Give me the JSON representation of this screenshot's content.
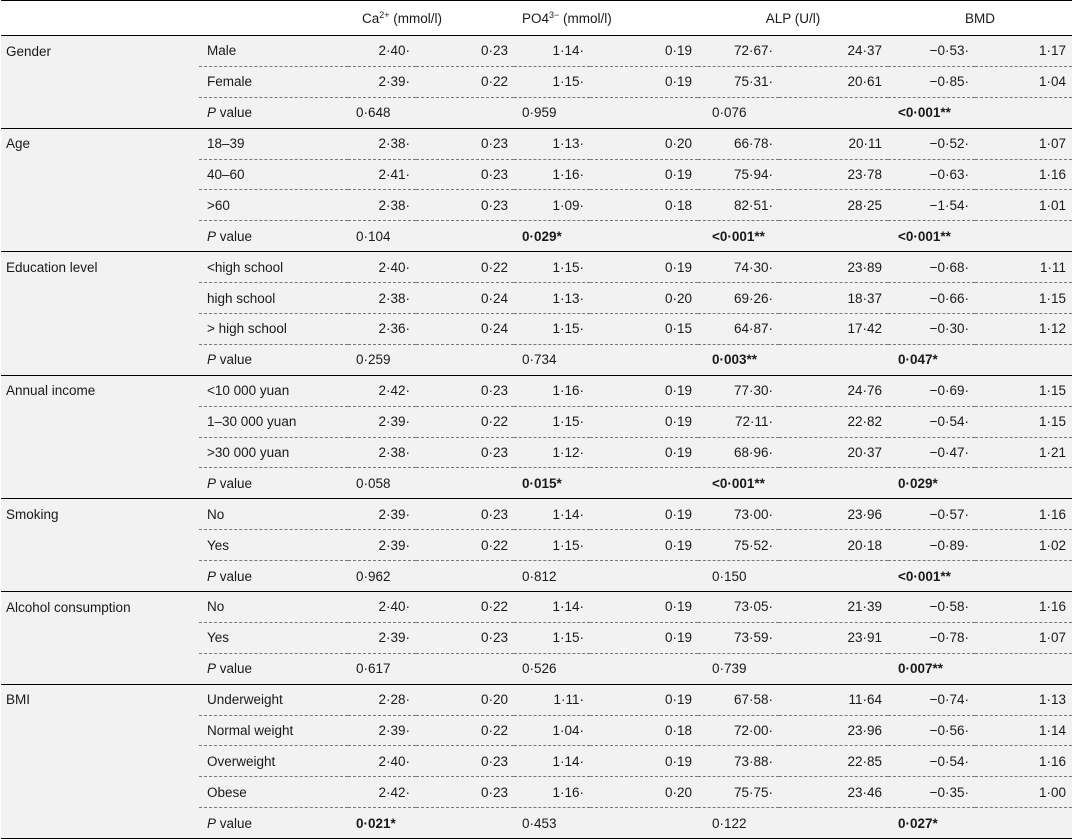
{
  "headers": {
    "ca_base": "Ca",
    "ca_sup": "2+",
    "ca_unit": " (mmol/l)",
    "po_base": "PO4",
    "po_sup": "3−",
    "po_unit": " (mmol/l)",
    "alp": "ALP (U/l)",
    "bmd": "BMD"
  },
  "groups": [
    {
      "name": "Gender",
      "rows": [
        {
          "label": "Male",
          "ca": [
            "2·40·",
            "0·23"
          ],
          "po": [
            "1·14·",
            "0·19"
          ],
          "alp": [
            "72·67·",
            "24·37"
          ],
          "bmd": [
            "−0·53·",
            "1·17"
          ]
        },
        {
          "label": "Female",
          "ca": [
            "2·39·",
            "0·22"
          ],
          "po": [
            "1·15·",
            "0·19"
          ],
          "alp": [
            "75·31·",
            "20·61"
          ],
          "bmd": [
            "−0·85·",
            "1·04"
          ]
        }
      ],
      "p": {
        "label_italic": "P",
        "label_rest": " value",
        "ca": "0·648",
        "ca_bold": false,
        "po": "0·959",
        "po_bold": false,
        "alp": "0·076",
        "alp_bold": false,
        "bmd": "<0·001**",
        "bmd_bold": true
      }
    },
    {
      "name": "Age",
      "rows": [
        {
          "label": "18–39",
          "ca": [
            "2·38·",
            "0·23"
          ],
          "po": [
            "1·13·",
            "0·20"
          ],
          "alp": [
            "66·78·",
            "20·11"
          ],
          "bmd": [
            "−0·52·",
            "1·07"
          ]
        },
        {
          "label": "40–60",
          "ca": [
            "2·41·",
            "0·23"
          ],
          "po": [
            "1·16·",
            "0·19"
          ],
          "alp": [
            "75·94·",
            "23·78"
          ],
          "bmd": [
            "−0·63·",
            "1·16"
          ]
        },
        {
          "label": ">60",
          "ca": [
            "2·38·",
            "0·23"
          ],
          "po": [
            "1·09·",
            "0·18"
          ],
          "alp": [
            "82·51·",
            "28·25"
          ],
          "bmd": [
            "−1·54·",
            "1·01"
          ]
        }
      ],
      "p": {
        "label_italic": "P",
        "label_rest": " value",
        "ca": "0·104",
        "ca_bold": false,
        "po": "0·029*",
        "po_bold": true,
        "alp": "<0·001**",
        "alp_bold": true,
        "bmd": "<0·001**",
        "bmd_bold": true
      }
    },
    {
      "name": "Education level",
      "rows": [
        {
          "label": "<high school",
          "ca": [
            "2·40·",
            "0·22"
          ],
          "po": [
            "1·15·",
            "0·19"
          ],
          "alp": [
            "74·30·",
            "23·89"
          ],
          "bmd": [
            "−0·68·",
            "1·11"
          ]
        },
        {
          "label": "high school",
          "ca": [
            "2·38·",
            "0·24"
          ],
          "po": [
            "1·13·",
            "0·20"
          ],
          "alp": [
            "69·26·",
            "18·37"
          ],
          "bmd": [
            "−0·66·",
            "1·15"
          ]
        },
        {
          "label": "> high school",
          "ca": [
            "2·36·",
            "0·24"
          ],
          "po": [
            "1·15·",
            "0·15"
          ],
          "alp": [
            "64·87·",
            "17·42"
          ],
          "bmd": [
            "−0·30·",
            "1·12"
          ]
        }
      ],
      "p": {
        "label_italic": "P",
        "label_rest": " value",
        "ca": "0·259",
        "ca_bold": false,
        "po": "0·734",
        "po_bold": false,
        "alp": "0·003**",
        "alp_bold": true,
        "bmd": "0·047*",
        "bmd_bold": true
      }
    },
    {
      "name": "Annual income",
      "rows": [
        {
          "label": "<10 000 yuan",
          "ca": [
            "2·42·",
            "0·23"
          ],
          "po": [
            "1·16·",
            "0·19"
          ],
          "alp": [
            "77·30·",
            "24·76"
          ],
          "bmd": [
            "−0·69·",
            "1·15"
          ]
        },
        {
          "label": "1–30 000 yuan",
          "ca": [
            "2·39·",
            "0·22"
          ],
          "po": [
            "1·15·",
            "0·19"
          ],
          "alp": [
            "72·11·",
            "22·82"
          ],
          "bmd": [
            "−0·54·",
            "1·15"
          ]
        },
        {
          "label": ">30 000 yuan",
          "ca": [
            "2·38·",
            "0·23"
          ],
          "po": [
            "1·12·",
            "0·19"
          ],
          "alp": [
            "68·96·",
            "20·37"
          ],
          "bmd": [
            "−0·47·",
            "1·21"
          ]
        }
      ],
      "p": {
        "label_italic": "P",
        "label_rest": " value",
        "ca": "0·058",
        "ca_bold": false,
        "po": "0·015*",
        "po_bold": true,
        "alp": "<0·001**",
        "alp_bold": true,
        "bmd": "0·029*",
        "bmd_bold": true
      }
    },
    {
      "name": "Smoking",
      "rows": [
        {
          "label": "No",
          "ca": [
            "2·39·",
            "0·23"
          ],
          "po": [
            "1·14·",
            "0·19"
          ],
          "alp": [
            "73·00·",
            "23·96"
          ],
          "bmd": [
            "−0·57·",
            "1·16"
          ]
        },
        {
          "label": "Yes",
          "ca": [
            "2·39·",
            "0·22"
          ],
          "po": [
            "1·15·",
            "0·19"
          ],
          "alp": [
            "75·52·",
            "20·18"
          ],
          "bmd": [
            "−0·89·",
            "1·02"
          ]
        }
      ],
      "p": {
        "label_italic": "P",
        "label_rest": " value",
        "ca": "0·962",
        "ca_bold": false,
        "po": "0·812",
        "po_bold": false,
        "alp": "0·150",
        "alp_bold": false,
        "bmd": "<0·001**",
        "bmd_bold": true
      }
    },
    {
      "name": "Alcohol consumption",
      "rows": [
        {
          "label": "No",
          "ca": [
            "2·40·",
            "0·22"
          ],
          "po": [
            "1·14·",
            "0·19"
          ],
          "alp": [
            "73·05·",
            "21·39"
          ],
          "bmd": [
            "−0·58·",
            "1·16"
          ]
        },
        {
          "label": "Yes",
          "ca": [
            "2·39·",
            "0·23"
          ],
          "po": [
            "1·15·",
            "0·19"
          ],
          "alp": [
            "73·59·",
            "23·91"
          ],
          "bmd": [
            "−0·78·",
            "1·07"
          ]
        }
      ],
      "p": {
        "label_italic": "P",
        "label_rest": " value",
        "ca": "0·617",
        "ca_bold": false,
        "po": "0·526",
        "po_bold": false,
        "alp": "0·739",
        "alp_bold": false,
        "bmd": "0·007**",
        "bmd_bold": true
      }
    },
    {
      "name": "BMI",
      "rows": [
        {
          "label": "Underweight",
          "ca": [
            "2·28·",
            "0·20"
          ],
          "po": [
            "1·11·",
            "0·19"
          ],
          "alp": [
            "67·58·",
            "11·64"
          ],
          "bmd": [
            "−0·74·",
            "1·13"
          ]
        },
        {
          "label": "Normal weight",
          "ca": [
            "2·39·",
            "0·22"
          ],
          "po": [
            "1·04·",
            "0·18"
          ],
          "alp": [
            "72·00·",
            "23·96"
          ],
          "bmd": [
            "−0·56·",
            "1·14"
          ]
        },
        {
          "label": "Overweight",
          "ca": [
            "2·40·",
            "0·23"
          ],
          "po": [
            "1·14·",
            "0·19"
          ],
          "alp": [
            "73·88·",
            "22·85"
          ],
          "bmd": [
            "−0·54·",
            "1·16"
          ]
        },
        {
          "label": "Obese",
          "ca": [
            "2·42·",
            "0·23"
          ],
          "po": [
            "1·16·",
            "0·20"
          ],
          "alp": [
            "75·75·",
            "23·46"
          ],
          "bmd": [
            "−0·35·",
            "1·00"
          ]
        }
      ],
      "p": {
        "label_italic": "P",
        "label_rest": " value",
        "ca": "0·021*",
        "ca_bold": true,
        "po": "0·453",
        "po_bold": false,
        "alp": "0·122",
        "alp_bold": false,
        "bmd": "0·027*",
        "bmd_bold": true
      }
    }
  ]
}
